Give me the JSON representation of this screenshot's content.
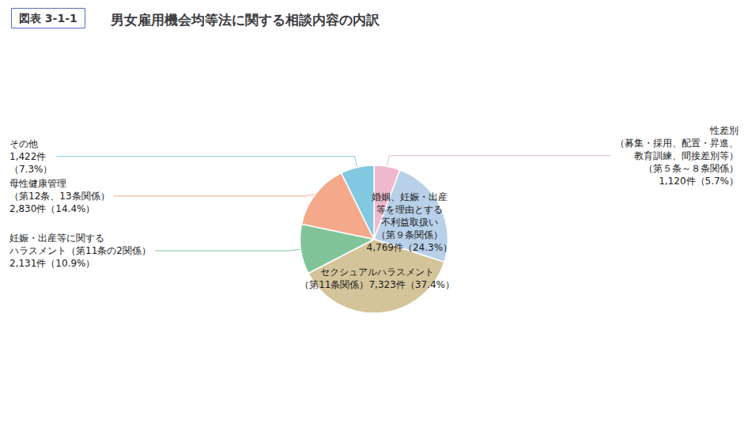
{
  "chart_data": {
    "type": "pie",
    "title": "男女雇用機会均等法に関する相談内容の内訳",
    "subtitle": "図表 3-1-1",
    "categories": [
      "性差別\n（募集・採用、配置・昇進、\n教育訓練、間接差別等）\n（第５条～８条関係）\n1,120件（5.7%）",
      "婚姻、妊娠・出産\n等を理由とする\n不利益取扱い\n（第９条関係）\n4,769件（24.3%）",
      "セクシュアルハラスメント\n（第11条関係）7,323件（37.4%）",
      "妊娠・出産等に関する\nハラスメント（第11条の2関係）\n2,131件（10.9%）",
      "母性健康管理\n（第12条、13条関係）\n2,830件（14.4%）",
      "その他\n1,422件\n（7.3%）"
    ],
    "values": [
      5.7,
      24.3,
      37.4,
      10.9,
      14.4,
      7.3
    ],
    "colors": [
      "#f0b8cc",
      "#b8d0e8",
      "#d4c49a",
      "#82c49a",
      "#f4a98a",
      "#82c8e0"
    ]
  }
}
